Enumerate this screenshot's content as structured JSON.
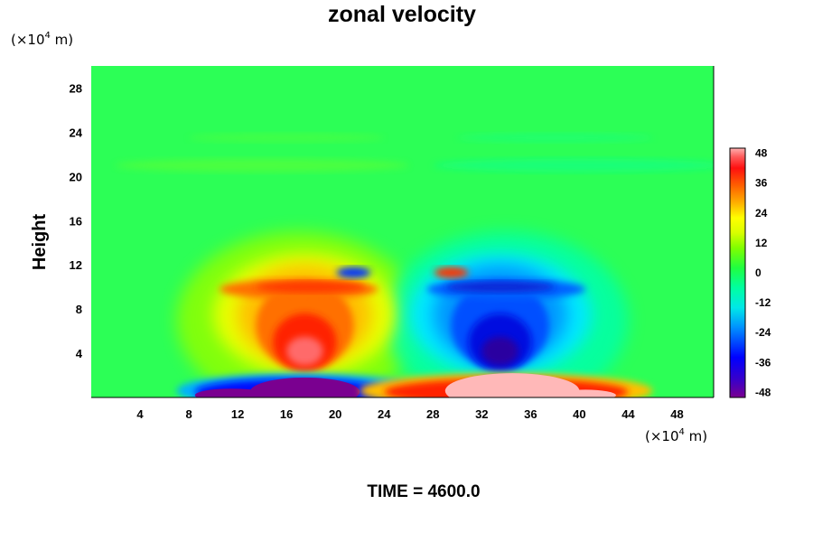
{
  "chart_data": {
    "type": "heatmap",
    "title": "zonal velocity",
    "ylabel": "Height",
    "x_unit": {
      "prefix": "(×10",
      "exp": "4",
      "suffix": " m)"
    },
    "y_unit": {
      "prefix": "(×10",
      "exp": "4",
      "suffix": " m)"
    },
    "xlim": [
      0,
      51
    ],
    "ylim": [
      0,
      30
    ],
    "x_ticks": [
      "4",
      "8",
      "12",
      "16",
      "20",
      "24",
      "28",
      "32",
      "36",
      "40",
      "44",
      "48"
    ],
    "y_ticks": [
      "4",
      "8",
      "12",
      "16",
      "20",
      "24",
      "28"
    ],
    "colorbar": {
      "range": [
        -50,
        50
      ],
      "ticks": [
        "48",
        "36",
        "24",
        "12",
        "0",
        "-12",
        "-24",
        "-36",
        "-48"
      ],
      "tick_values": [
        48,
        36,
        24,
        12,
        0,
        -12,
        -24,
        -36,
        -48
      ]
    },
    "field_features": [
      {
        "x": 17.5,
        "y": 4.5,
        "value": 45,
        "note": "positive core"
      },
      {
        "x": 33.5,
        "y": 4.5,
        "value": -45,
        "note": "negative core"
      },
      {
        "x": 17.0,
        "y": 10.0,
        "value": 24,
        "note": "upper positive band"
      },
      {
        "x": 33.5,
        "y": 10.0,
        "value": -30,
        "note": "upper negative band"
      },
      {
        "x": 16.5,
        "y": 0.6,
        "value": -50,
        "note": "surface negative"
      },
      {
        "x": 34.0,
        "y": 0.6,
        "value": 50,
        "note": "surface positive"
      },
      {
        "x": 29.5,
        "y": 11.3,
        "value": 35,
        "note": "small positive cell"
      },
      {
        "x": 21.5,
        "y": 11.3,
        "value": -35,
        "note": "small negative cell"
      }
    ],
    "footer": "TIME = 4600.0"
  }
}
